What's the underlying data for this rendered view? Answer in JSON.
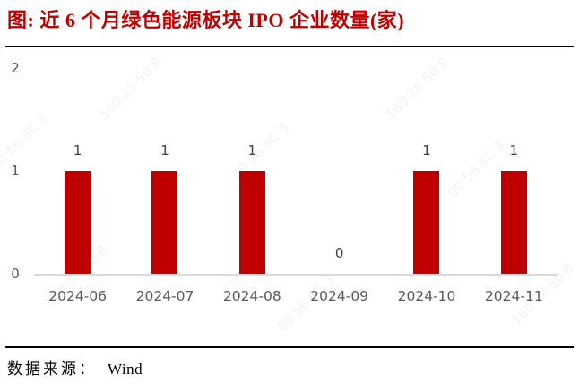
{
  "title": "图: 近 6 个月绿色能源板块 IPO 企业数量(家)",
  "footer": {
    "source_label": "数据来源：",
    "source_value": "Wind"
  },
  "watermark": {
    "lines": [
      "00 56 8C 3",
      "160 28 50 8"
    ]
  },
  "colors": {
    "title": "#c00000",
    "bar": "#c00000",
    "axis_line": "#d9d9d9",
    "tick_label": "#595959",
    "data_label": "#404040",
    "rule": "#000000"
  },
  "chart_data": {
    "type": "bar",
    "title": "近 6 个月绿色能源板块 IPO 企业数量(家)",
    "categories": [
      "2024-06",
      "2024-07",
      "2024-08",
      "2024-09",
      "2024-10",
      "2024-11"
    ],
    "values": [
      1,
      1,
      1,
      0,
      1,
      1
    ],
    "xlabel": "",
    "ylabel": "",
    "ylim": [
      0,
      2
    ],
    "yticks": [
      0,
      1,
      2
    ],
    "data_labels": [
      1,
      1,
      1,
      0,
      1,
      1
    ],
    "grid": false,
    "legend": null,
    "source": "Wind"
  }
}
